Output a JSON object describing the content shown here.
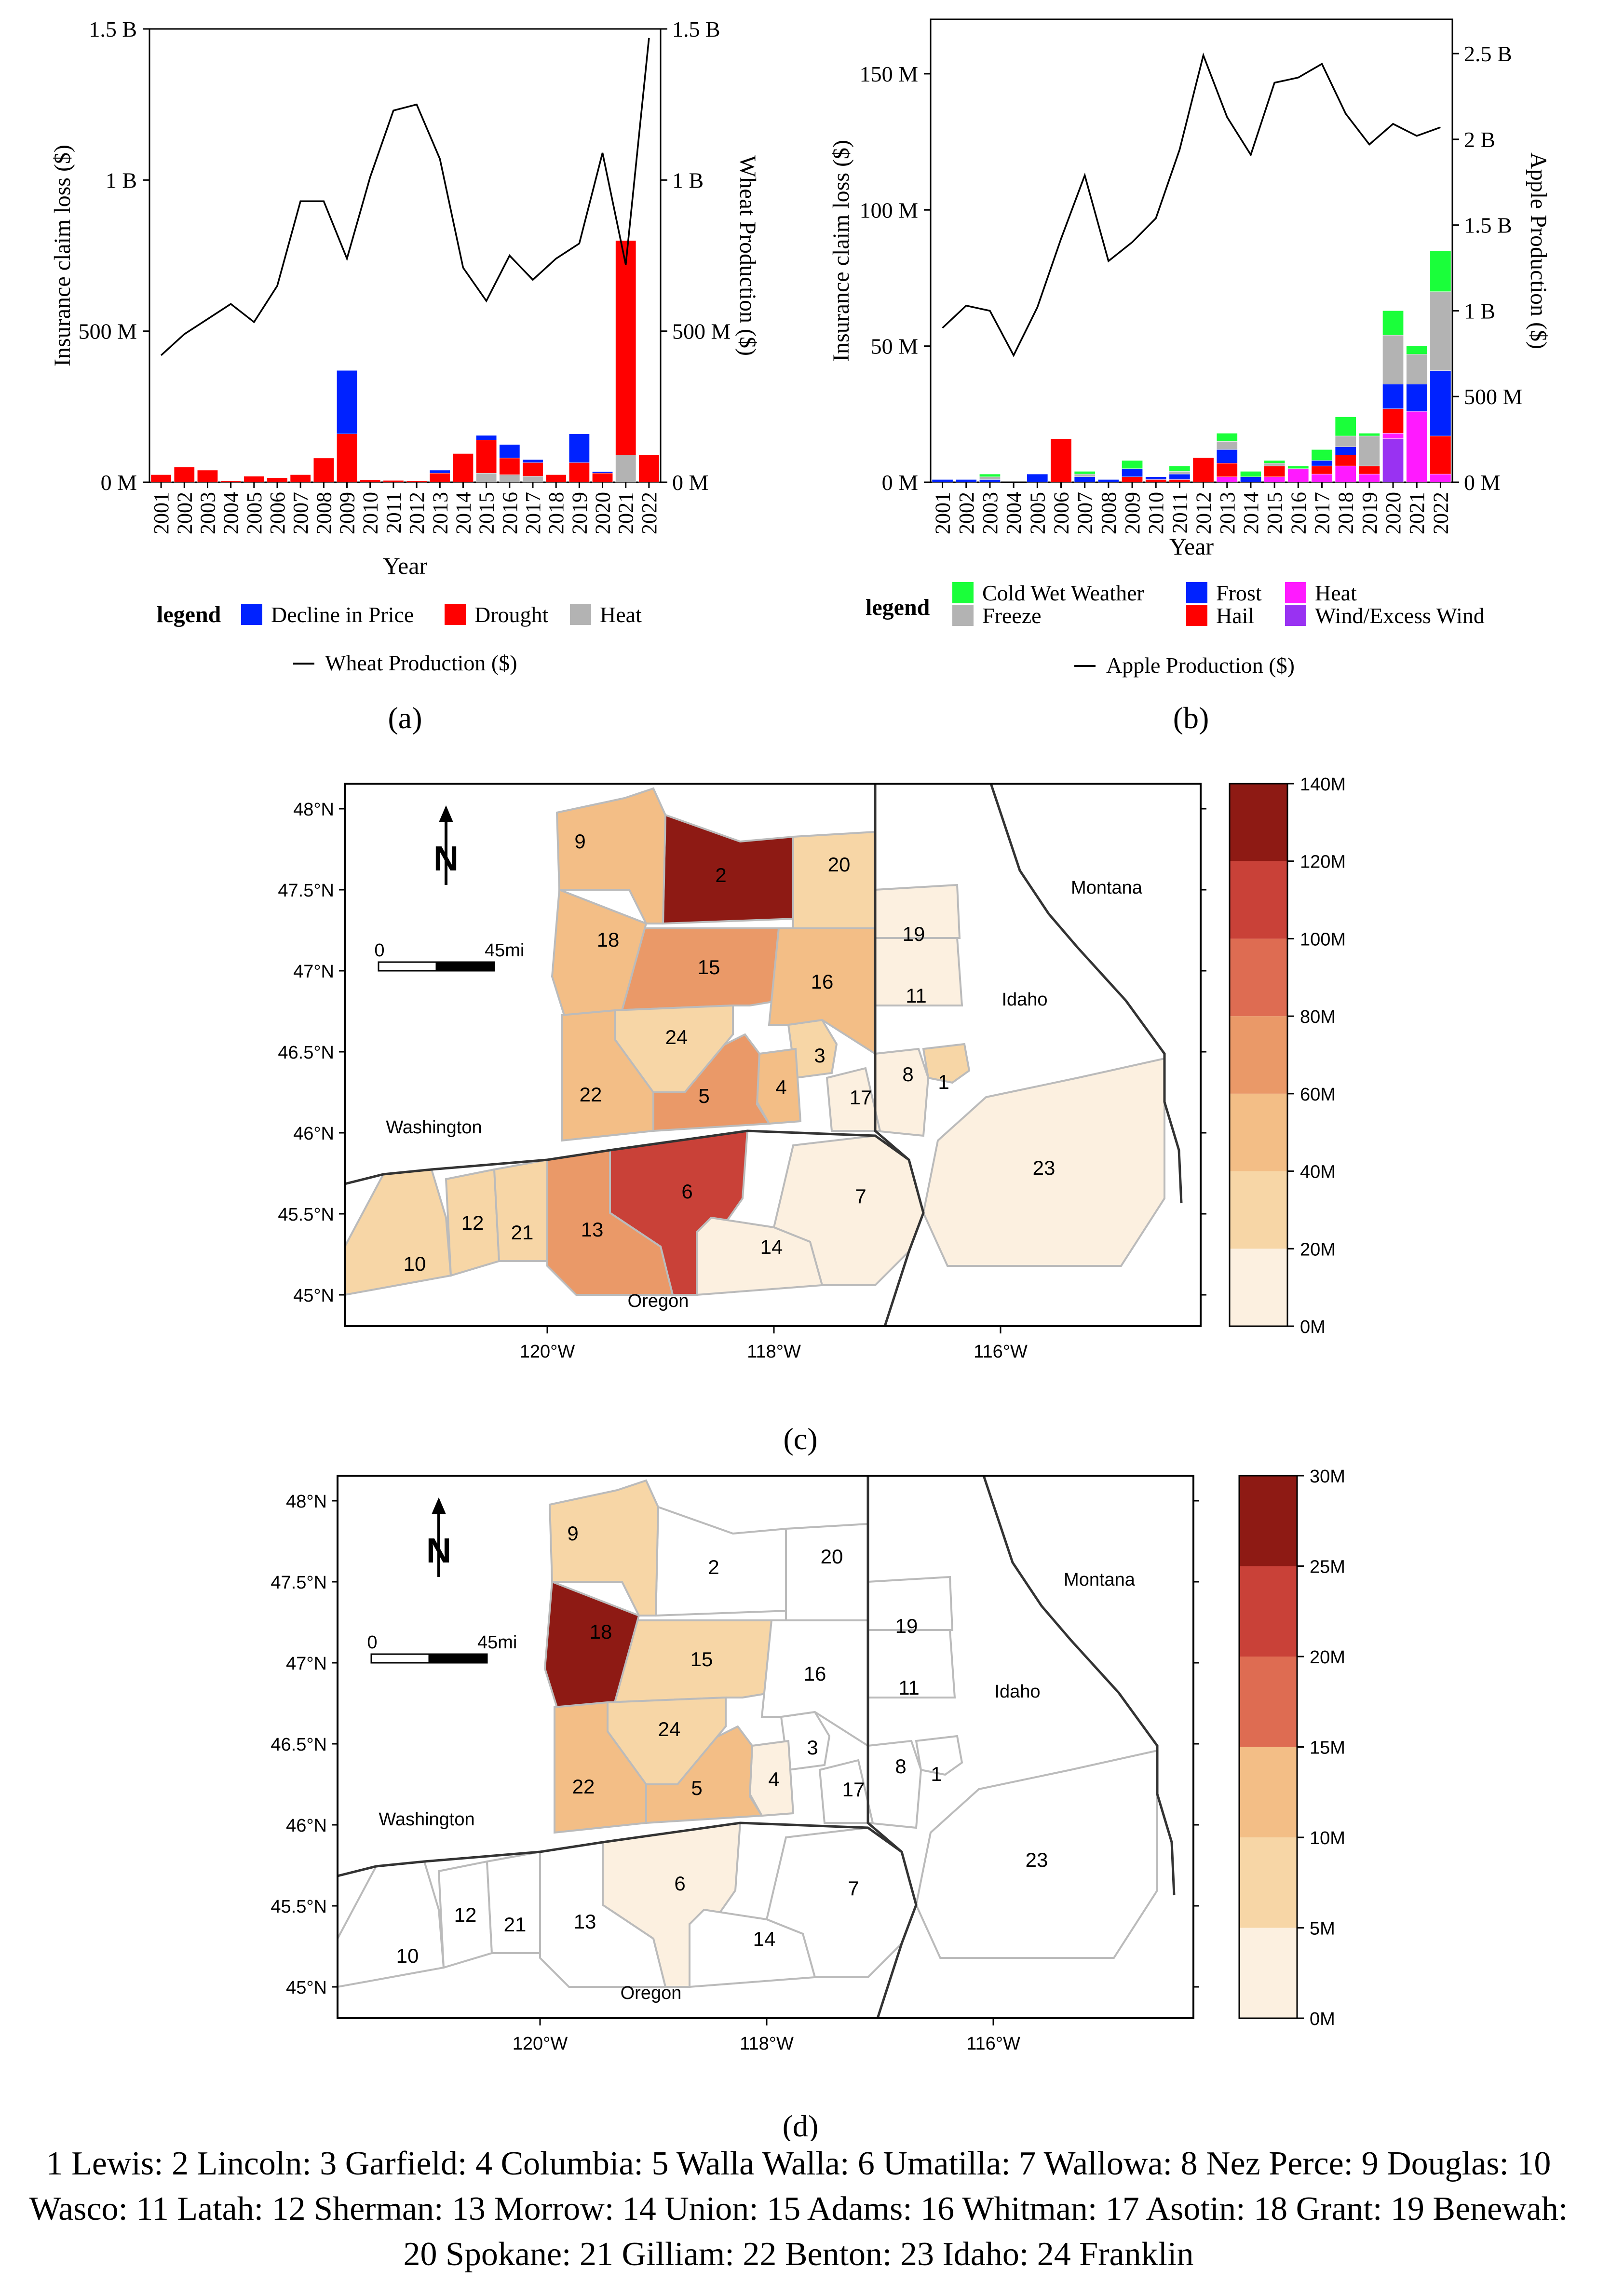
{
  "chart_data": [
    {
      "id": "a",
      "panel_label": "a",
      "type": "bar",
      "stacked": true,
      "title": "",
      "xlabel": "Year",
      "ylabel": "Insurance claim loss ($)",
      "y2label": "Wheat Production ($)",
      "ylim": [
        0,
        1500000000
      ],
      "y2lim": [
        0,
        1500000000
      ],
      "yticks": [
        "0 M",
        "500 M",
        "1 B",
        "1.5 B"
      ],
      "y2ticks": [
        "0 M",
        "500 M",
        "1 B",
        "1.5 B"
      ],
      "categories": [
        "2001",
        "2002",
        "2003",
        "2004",
        "2005",
        "2006",
        "2007",
        "2008",
        "2009",
        "2010",
        "2011",
        "2012",
        "2013",
        "2014",
        "2015",
        "2016",
        "2017",
        "2018",
        "2019",
        "2020",
        "2021",
        "2022"
      ],
      "legend_title": "legend",
      "series": [
        {
          "name": "Heat",
          "color": "#b3b3b3",
          "values": [
            0,
            0,
            0,
            0,
            0,
            0,
            0,
            0,
            0,
            0,
            0,
            0,
            0,
            0,
            30000000,
            25000000,
            20000000,
            0,
            0,
            0,
            90000000,
            0
          ]
        },
        {
          "name": "Drought",
          "color": "#ff0000",
          "values": [
            25000000,
            50000000,
            40000000,
            5000000,
            20000000,
            15000000,
            25000000,
            80000000,
            160000000,
            8000000,
            6000000,
            5000000,
            30000000,
            95000000,
            110000000,
            55000000,
            45000000,
            25000000,
            65000000,
            30000000,
            710000000,
            90000000
          ]
        },
        {
          "name": "Decline in Price",
          "color": "#0022ff",
          "values": [
            0,
            0,
            0,
            0,
            0,
            0,
            0,
            0,
            210000000,
            0,
            0,
            0,
            10000000,
            0,
            15000000,
            45000000,
            10000000,
            0,
            95000000,
            5000000,
            0,
            0
          ]
        }
      ],
      "legend_order": [
        "Decline in Price",
        "Drought",
        "Heat"
      ],
      "line": {
        "name": "Wheat Production ($)",
        "values": [
          420000000,
          490000000,
          540000000,
          590000000,
          530000000,
          650000000,
          930000000,
          930000000,
          740000000,
          1010000000,
          1230000000,
          1250000000,
          1070000000,
          710000000,
          600000000,
          750000000,
          670000000,
          740000000,
          790000000,
          1090000000,
          720000000,
          1470000000
        ]
      }
    },
    {
      "id": "b",
      "panel_label": "b",
      "type": "bar",
      "stacked": true,
      "title": "",
      "xlabel": "Year",
      "ylabel": "Insurance claim loss ($)",
      "y2label": "Apple Production ($)",
      "ylim": [
        0,
        170000000
      ],
      "y2lim": [
        0,
        2700000000
      ],
      "yticks": [
        "0 M",
        "50 M",
        "100 M",
        "150 M"
      ],
      "y2ticks": [
        "0 M",
        "500 M",
        "1 B",
        "1.5 B",
        "2 B",
        "2.5 B"
      ],
      "categories": [
        "2001",
        "2002",
        "2003",
        "2004",
        "2005",
        "2006",
        "2007",
        "2008",
        "2009",
        "2010",
        "2011",
        "2012",
        "2013",
        "2014",
        "2015",
        "2016",
        "2017",
        "2018",
        "2019",
        "2020",
        "2021",
        "2022"
      ],
      "legend_title": "legend",
      "series": [
        {
          "name": "Wind/Excess Wind",
          "color": "#9932f2",
          "values": [
            0,
            0,
            0,
            0,
            0,
            0,
            0,
            0,
            0,
            0,
            0,
            0,
            0,
            0,
            0,
            0,
            0,
            0,
            0,
            16000000,
            0,
            0
          ]
        },
        {
          "name": "Heat",
          "color": "#ff1aff",
          "values": [
            0,
            0,
            0,
            0,
            0,
            0,
            0,
            0,
            0,
            0,
            0,
            0,
            2000000,
            0,
            2000000,
            5000000,
            3000000,
            6000000,
            3000000,
            2000000,
            26000000,
            3000000
          ]
        },
        {
          "name": "Hail",
          "color": "#ff0000",
          "values": [
            0,
            0,
            0,
            0,
            0,
            16000000,
            0,
            0,
            2000000,
            1000000,
            1000000,
            9000000,
            5000000,
            0,
            4000000,
            0,
            3000000,
            4000000,
            3000000,
            9000000,
            0,
            14000000
          ]
        },
        {
          "name": "Frost",
          "color": "#0022ff",
          "values": [
            1000000,
            1000000,
            1000000,
            0,
            3000000,
            0,
            2000000,
            1000000,
            3000000,
            1000000,
            2000000,
            0,
            5000000,
            2000000,
            0,
            0,
            2000000,
            3000000,
            0,
            9000000,
            10000000,
            24000000
          ]
        },
        {
          "name": "Freeze",
          "color": "#b3b3b3",
          "values": [
            0,
            0,
            1000000,
            0,
            0,
            0,
            1000000,
            0,
            0,
            0,
            1000000,
            0,
            3000000,
            0,
            1000000,
            0,
            0,
            4000000,
            11000000,
            18000000,
            11000000,
            29000000
          ]
        },
        {
          "name": "Cold Wet Weather",
          "color": "#1aff3a",
          "values": [
            0,
            0,
            1000000,
            0,
            0,
            0,
            1000000,
            0,
            3000000,
            0,
            2000000,
            0,
            3000000,
            2000000,
            1000000,
            1000000,
            4000000,
            7000000,
            1000000,
            9000000,
            3000000,
            15000000
          ]
        }
      ],
      "legend_order": [
        "Cold Wet Weather",
        "Freeze",
        "Frost",
        "Hail",
        "Heat",
        "Wind/Excess Wind"
      ],
      "line": {
        "name": "Apple Production ($)",
        "values": [
          900000000,
          1030000000,
          1000000000,
          740000000,
          1020000000,
          1420000000,
          1790000000,
          1290000000,
          1400000000,
          1540000000,
          1940000000,
          2490000000,
          2130000000,
          1910000000,
          2330000000,
          2360000000,
          2440000000,
          2150000000,
          1970000000,
          2090000000,
          2020000000,
          2070000000
        ]
      }
    },
    {
      "id": "c",
      "panel_label": "c",
      "type": "heatmap",
      "title": "",
      "xlabel": "",
      "ylabel": "",
      "xticks": [
        "120°W",
        "118°W",
        "116°W"
      ],
      "yticks": [
        "45°N",
        "45.5°N",
        "46°N",
        "46.5°N",
        "47°N",
        "47.5°N",
        "48°N"
      ],
      "colorbar_ticks": [
        "0M",
        "20M",
        "40M",
        "60M",
        "80M",
        "100M",
        "120M",
        "140M"
      ],
      "colorbar_colors": [
        "#fcf0e0",
        "#f7d6a6",
        "#f3be86",
        "#ea9968",
        "#de6c52",
        "#c94138",
        "#8e1a14"
      ],
      "map_labels": {
        "washington": "Washington",
        "oregon": "Oregon",
        "idaho": "Idaho",
        "montana": "Montana"
      },
      "scale": {
        "zero": "0",
        "distance": "45mi"
      },
      "counties": [
        {
          "id": 1,
          "bin": 1
        },
        {
          "id": 2,
          "bin": 6
        },
        {
          "id": 3,
          "bin": 1
        },
        {
          "id": 4,
          "bin": 2
        },
        {
          "id": 5,
          "bin": 3
        },
        {
          "id": 6,
          "bin": 5
        },
        {
          "id": 7,
          "bin": 0
        },
        {
          "id": 8,
          "bin": 0
        },
        {
          "id": 9,
          "bin": 2
        },
        {
          "id": 10,
          "bin": 1
        },
        {
          "id": 11,
          "bin": 0
        },
        {
          "id": 12,
          "bin": 1
        },
        {
          "id": 13,
          "bin": 3
        },
        {
          "id": 14,
          "bin": 0
        },
        {
          "id": 15,
          "bin": 3
        },
        {
          "id": 16,
          "bin": 2
        },
        {
          "id": 17,
          "bin": 0
        },
        {
          "id": 18,
          "bin": 2
        },
        {
          "id": 19,
          "bin": 0
        },
        {
          "id": 20,
          "bin": 1
        },
        {
          "id": 21,
          "bin": 1
        },
        {
          "id": 22,
          "bin": 2
        },
        {
          "id": 23,
          "bin": 0
        },
        {
          "id": 24,
          "bin": 1
        }
      ]
    },
    {
      "id": "d",
      "panel_label": "d",
      "type": "heatmap",
      "title": "",
      "xlabel": "",
      "ylabel": "",
      "xticks": [
        "120°W",
        "118°W",
        "116°W"
      ],
      "yticks": [
        "45°N",
        "45.5°N",
        "46°N",
        "46.5°N",
        "47°N",
        "47.5°N",
        "48°N"
      ],
      "colorbar_ticks": [
        "0M",
        "5M",
        "10M",
        "15M",
        "20M",
        "25M",
        "30M"
      ],
      "colorbar_colors": [
        "#fcf0e0",
        "#f7d6a6",
        "#f3be86",
        "#de6c52",
        "#c94138",
        "#8e1a14"
      ],
      "map_labels": {
        "washington": "Washington",
        "oregon": "Oregon",
        "idaho": "Idaho",
        "montana": "Montana"
      },
      "scale": {
        "zero": "0",
        "distance": "45mi"
      },
      "counties": [
        {
          "id": 1,
          "bin": -1
        },
        {
          "id": 2,
          "bin": -1
        },
        {
          "id": 3,
          "bin": -1
        },
        {
          "id": 4,
          "bin": 0
        },
        {
          "id": 5,
          "bin": 2
        },
        {
          "id": 6,
          "bin": 0
        },
        {
          "id": 7,
          "bin": -1
        },
        {
          "id": 8,
          "bin": -1
        },
        {
          "id": 9,
          "bin": 1
        },
        {
          "id": 10,
          "bin": -1
        },
        {
          "id": 11,
          "bin": -1
        },
        {
          "id": 12,
          "bin": -1
        },
        {
          "id": 13,
          "bin": -1
        },
        {
          "id": 14,
          "bin": -1
        },
        {
          "id": 15,
          "bin": 1
        },
        {
          "id": 16,
          "bin": -1
        },
        {
          "id": 17,
          "bin": -1
        },
        {
          "id": 18,
          "bin": 5
        },
        {
          "id": 19,
          "bin": -1
        },
        {
          "id": 20,
          "bin": -1
        },
        {
          "id": 21,
          "bin": -1
        },
        {
          "id": 22,
          "bin": 2
        },
        {
          "id": 23,
          "bin": -1
        },
        {
          "id": 24,
          "bin": 1
        }
      ]
    }
  ],
  "caption": {
    "line1": "1 Lewis: 2 Lincoln: 3 Garfield: 4 Columbia: 5 Walla Walla: 6 Umatilla: 7 Wallowa: 8 Nez Perce: 9 Douglas: 10",
    "line2": "Wasco: 11 Latah: 12 Sherman: 13 Morrow: 14 Union: 15 Adams: 16 Whitman: 17 Asotin: 18 Grant: 19 Benewah:",
    "line3": "20 Spokane: 21 Gilliam: 22 Benton: 23 Idaho: 24 Franklin"
  }
}
